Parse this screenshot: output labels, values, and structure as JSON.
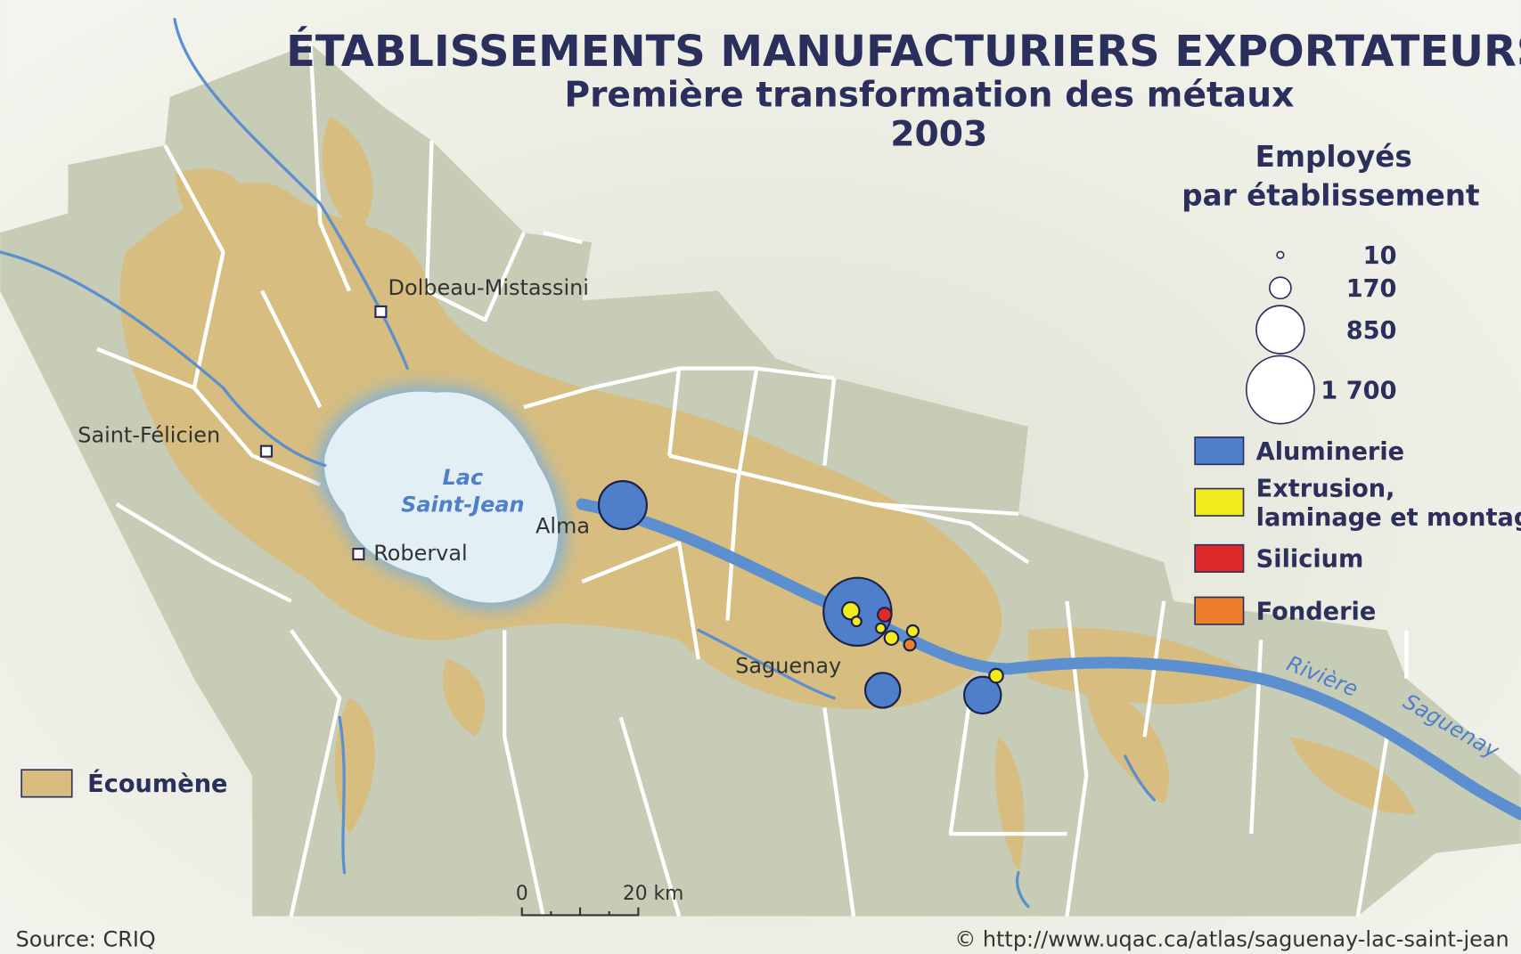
{
  "title": "ÉTABLISSEMENTS MANUFACTURIERS EXPORTATEURS",
  "subtitle": "Première transformation des métaux",
  "year": 2003,
  "size_legend": {
    "title": [
      "Employés",
      "par établissement"
    ],
    "values": [
      10,
      170,
      850,
      {
        "value": 1700,
        "label": "1 700"
      }
    ]
  },
  "categories": [
    {
      "name": [
        "Aluminerie"
      ],
      "color": "#4f7fca",
      "establishments": [
        850,
        1700,
        450,
        500
      ]
    },
    {
      "name": [
        "Extrusion,",
        "laminage et montage"
      ],
      "color": "#f2ea1c",
      "establishments": [
        110,
        35,
        35,
        70,
        50,
        70
      ]
    },
    {
      "name": [
        "Silicium"
      ],
      "color": "#e02a2a",
      "establishments": [
        70
      ]
    },
    {
      "name": [
        "Fonderie"
      ],
      "color": "#ee7d2c",
      "establishments": [
        50
      ]
    }
  ],
  "places": [
    "Dolbeau-Mistassini",
    "Saint-Félicien",
    "Roberval",
    "Alma",
    "Saguenay"
  ],
  "lake": [
    "Lac",
    "Saint-Jean"
  ],
  "river": [
    "Rivière",
    "Saguenay"
  ],
  "ecoumene": "Écoumène",
  "scale_bar": [
    0,
    {
      "value": 20,
      "label": "20 km"
    }
  ],
  "source": "Source: CRIQ",
  "credit": "© http://www.uqac.ca/atlas/saguenay-lac-saint-jean"
}
